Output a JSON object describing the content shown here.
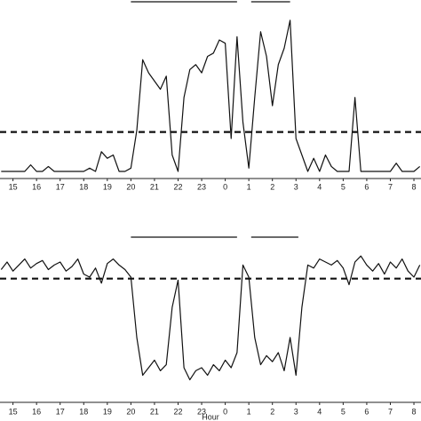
{
  "chart_data": [
    {
      "type": "line",
      "x": [
        14.5,
        14.75,
        15,
        15.25,
        15.5,
        15.75,
        16,
        16.25,
        16.5,
        16.75,
        17,
        17.25,
        17.5,
        17.75,
        18,
        18.25,
        18.5,
        18.75,
        19,
        19.25,
        19.5,
        19.75,
        20,
        20.25,
        20.5,
        20.75,
        21,
        21.25,
        21.5,
        21.75,
        22,
        22.25,
        22.5,
        22.75,
        23,
        23.25,
        23.5,
        23.75,
        24,
        24.25,
        24.5,
        24.75,
        25,
        25.25,
        25.5,
        25.75,
        26,
        26.25,
        26.5,
        26.75,
        27,
        27.25,
        27.5,
        27.75,
        28,
        28.25,
        28.5,
        28.75,
        29,
        29.25,
        29.5,
        29.75,
        30,
        30.25,
        30.5,
        30.75,
        31,
        31.25,
        31.5,
        31.75,
        32,
        32.25
      ],
      "series": [
        {
          "color": "#111111",
          "values": [
            0,
            0,
            0,
            0,
            0,
            4,
            0,
            0,
            3,
            0,
            0,
            0,
            0,
            0,
            0,
            2,
            0,
            12,
            8,
            10,
            0,
            0,
            2,
            25,
            68,
            60,
            55,
            50,
            58,
            10,
            0,
            45,
            62,
            65,
            60,
            70,
            72,
            80,
            78,
            20,
            82,
            30,
            2,
            45,
            85,
            70,
            40,
            65,
            75,
            92,
            20,
            10,
            0,
            8,
            0,
            10,
            3,
            0,
            0,
            0,
            45,
            0,
            0,
            0,
            0,
            0,
            0,
            5,
            0,
            0,
            0,
            3
          ]
        }
      ],
      "threshold": 24,
      "periods": [
        [
          20,
          24.5
        ],
        [
          25.1,
          26.75
        ]
      ],
      "xlim": [
        14.45,
        32.3
      ],
      "ylim": [
        0,
        100
      ],
      "xticks": [
        15,
        16,
        17,
        18,
        19,
        20,
        21,
        22,
        23,
        {
          "value": 24,
          "label": "0"
        },
        {
          "value": 25,
          "label": "1"
        },
        {
          "value": 26,
          "label": "2"
        },
        {
          "value": 27,
          "label": "3"
        },
        {
          "value": 28,
          "label": "4"
        },
        {
          "value": 29,
          "label": "5"
        },
        {
          "value": 30,
          "label": "6"
        },
        {
          "value": 31,
          "label": "7"
        },
        {
          "value": 32,
          "label": "8"
        }
      ]
    },
    {
      "type": "line",
      "xlabel": "Hour",
      "x": [
        14.5,
        14.75,
        15,
        15.25,
        15.5,
        15.75,
        16,
        16.25,
        16.5,
        16.75,
        17,
        17.25,
        17.5,
        17.75,
        18,
        18.25,
        18.5,
        18.75,
        19,
        19.25,
        19.5,
        19.75,
        20,
        20.25,
        20.5,
        20.75,
        21,
        21.25,
        21.5,
        21.75,
        22,
        22.25,
        22.5,
        22.75,
        23,
        23.25,
        23.5,
        23.75,
        24,
        24.25,
        24.5,
        24.75,
        25,
        25.25,
        25.5,
        25.75,
        26,
        26.25,
        26.5,
        26.75,
        27,
        27.25,
        27.5,
        27.75,
        28,
        28.25,
        28.5,
        28.75,
        29,
        29.25,
        29.5,
        29.75,
        30,
        30.25,
        30.5,
        30.75,
        31,
        31.25,
        31.5,
        31.75,
        32,
        32.25
      ],
      "series": [
        {
          "color": "#111111",
          "values": [
            85,
            90,
            84,
            88,
            92,
            86,
            89,
            91,
            85,
            88,
            90,
            84,
            87,
            92,
            82,
            80,
            86,
            76,
            89,
            92,
            88,
            85,
            80,
            40,
            15,
            20,
            25,
            18,
            22,
            60,
            78,
            20,
            12,
            18,
            20,
            15,
            22,
            18,
            25,
            20,
            30,
            88,
            80,
            40,
            22,
            28,
            24,
            30,
            18,
            40,
            15,
            60,
            88,
            86,
            92,
            90,
            88,
            91,
            86,
            75,
            90,
            94,
            88,
            84,
            89,
            82,
            90,
            86,
            92,
            84,
            80,
            88
          ]
        }
      ],
      "threshold": 79,
      "periods": [
        [
          20,
          24.5
        ],
        [
          25.1,
          27.1
        ]
      ],
      "xlim": [
        14.45,
        32.3
      ],
      "ylim": [
        0,
        100
      ],
      "xticks": [
        15,
        16,
        17,
        18,
        19,
        20,
        21,
        22,
        23,
        {
          "value": 24,
          "label": "0"
        },
        {
          "value": 25,
          "label": "1"
        },
        {
          "value": 26,
          "label": "2"
        },
        {
          "value": 27,
          "label": "3"
        },
        {
          "value": 28,
          "label": "4"
        },
        {
          "value": 29,
          "label": "5"
        },
        {
          "value": 30,
          "label": "6"
        },
        {
          "value": 31,
          "label": "7"
        },
        {
          "value": 32,
          "label": "8"
        }
      ]
    }
  ]
}
